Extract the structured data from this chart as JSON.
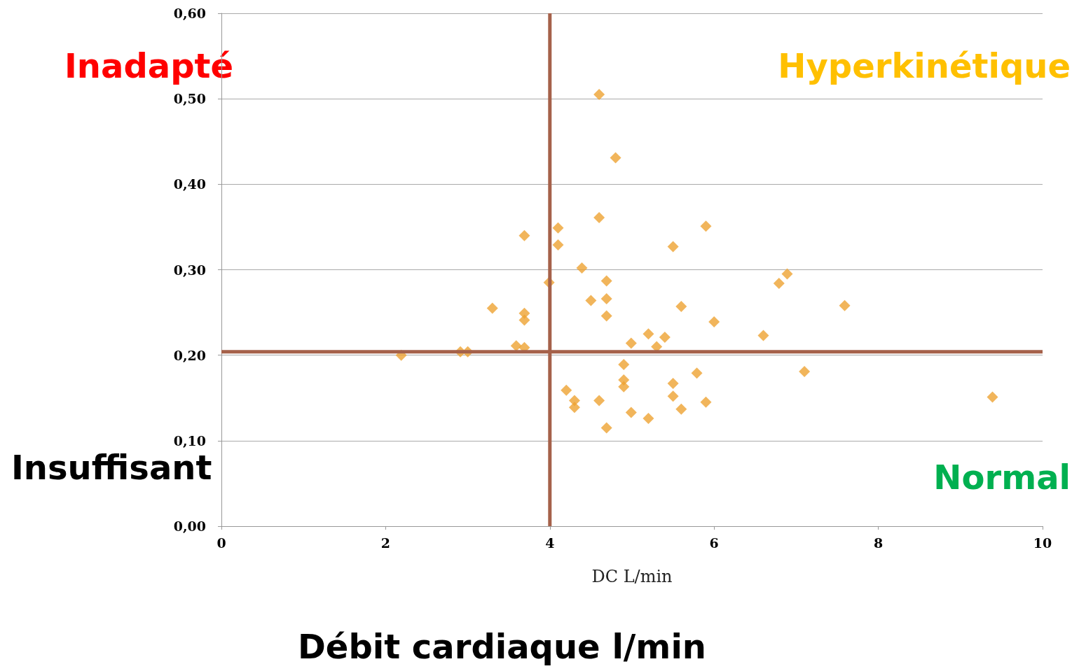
{
  "chart_data": {
    "type": "scatter",
    "xlabel": "DC L/min",
    "x": [
      2.19,
      2.91,
      3.0,
      3.3,
      3.59,
      3.69,
      3.69,
      3.69,
      3.69,
      3.99,
      4.1,
      4.1,
      4.2,
      4.3,
      4.3,
      4.39,
      4.5,
      4.6,
      4.6,
      4.6,
      4.69,
      4.69,
      4.69,
      4.69,
      4.8,
      4.9,
      4.9,
      4.9,
      4.99,
      4.99,
      5.2,
      5.2,
      5.3,
      5.4,
      5.5,
      5.5,
      5.5,
      5.6,
      5.6,
      5.79,
      5.9,
      5.9,
      6.0,
      6.6,
      6.79,
      6.89,
      7.1,
      7.59,
      9.39
    ],
    "values": [
      0.2,
      0.204,
      0.204,
      0.255,
      0.211,
      0.209,
      0.34,
      0.249,
      0.241,
      0.285,
      0.349,
      0.329,
      0.159,
      0.147,
      0.139,
      0.302,
      0.264,
      0.505,
      0.361,
      0.147,
      0.287,
      0.266,
      0.246,
      0.115,
      0.431,
      0.189,
      0.171,
      0.163,
      0.214,
      0.133,
      0.225,
      0.126,
      0.21,
      0.221,
      0.327,
      0.167,
      0.152,
      0.257,
      0.137,
      0.179,
      0.351,
      0.145,
      0.239,
      0.223,
      0.284,
      0.295,
      0.181,
      0.258,
      0.151
    ],
    "color": "#eda232",
    "marker": "diamond",
    "xlim": [
      0,
      10
    ],
    "xticks": [
      0,
      2,
      4,
      6,
      8,
      10
    ],
    "ylim": [
      0,
      0.6
    ],
    "yticks": [
      {
        "value": 0,
        "label": "0,00"
      },
      {
        "value": 0.1,
        "label": "0,10"
      },
      {
        "value": 0.2,
        "label": "0,20"
      },
      {
        "value": 0.3,
        "label": "0,30"
      },
      {
        "value": 0.4,
        "label": "0,40"
      },
      {
        "value": 0.5,
        "label": "0,50"
      },
      {
        "value": 0.6,
        "label": "0,60"
      }
    ],
    "grid": "y",
    "ref_lines": [
      {
        "axis": "x",
        "value": 4,
        "color": "#a5614a"
      },
      {
        "axis": "y",
        "value": 0.204,
        "color": "#a5614a"
      }
    ],
    "annotations": [
      "Inadapté",
      "Hyperkinétique",
      "Insuffisant",
      "Normal",
      "Débit cardiaque l/min"
    ]
  }
}
